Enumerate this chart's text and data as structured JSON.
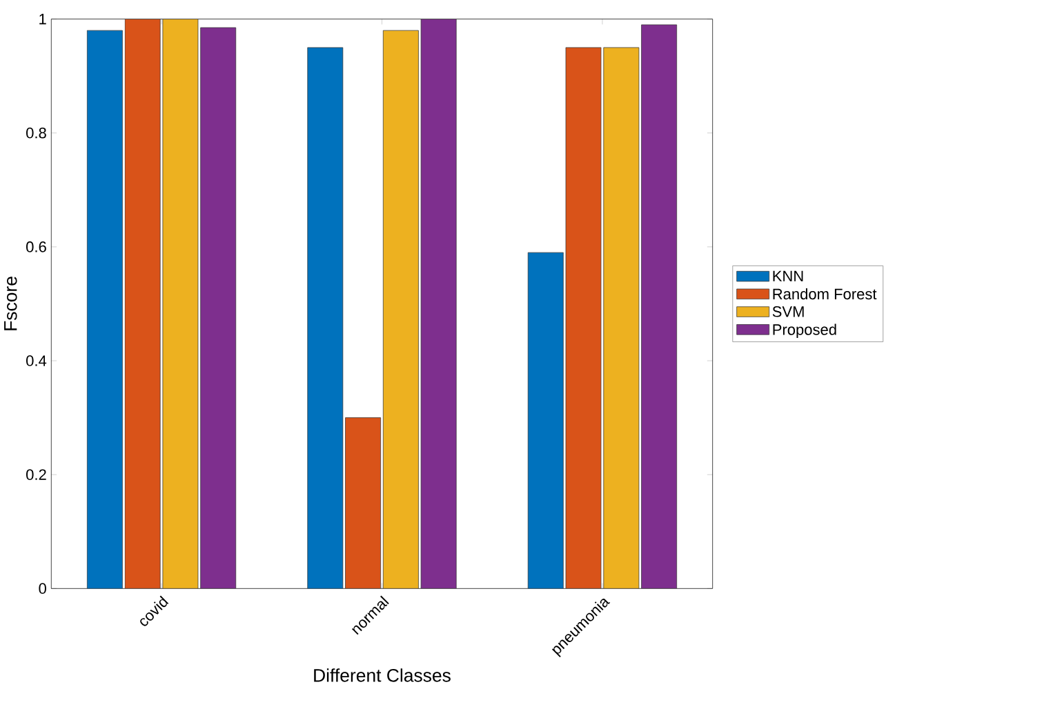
{
  "chart_data": {
    "type": "bar",
    "xlabel": "Different Classes",
    "ylabel": "Fscore",
    "categories": [
      "covid",
      "normal",
      "pneumonia"
    ],
    "series": [
      {
        "name": "KNN",
        "color": "#0072bd",
        "values": [
          0.98,
          0.95,
          0.59
        ]
      },
      {
        "name": "Random Forest",
        "color": "#d95319",
        "values": [
          1.0,
          0.3,
          0.95
        ]
      },
      {
        "name": "SVM",
        "color": "#edb120",
        "values": [
          1.0,
          0.98,
          0.95
        ]
      },
      {
        "name": "Proposed",
        "color": "#7e2f8e",
        "values": [
          0.985,
          1.0,
          0.99
        ]
      }
    ],
    "ylim": [
      0,
      1
    ],
    "yticks": [
      0,
      0.2,
      0.4,
      0.6,
      0.8,
      1
    ],
    "legend": "right",
    "grid": false
  }
}
